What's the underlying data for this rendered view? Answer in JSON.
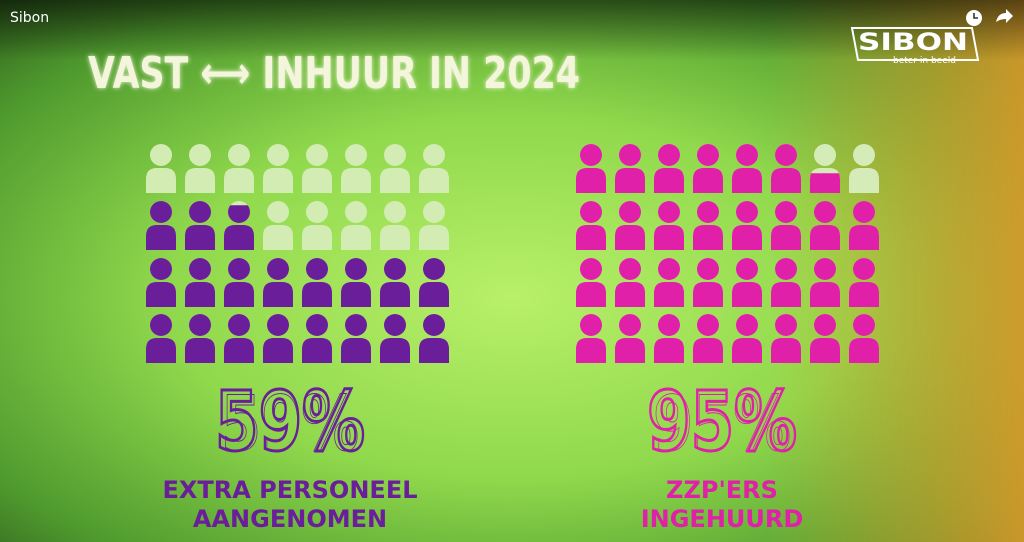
{
  "header": {
    "channel": "Sibon"
  },
  "logo": {
    "name": "SIBON",
    "tagline": "beter in beeld"
  },
  "title": "VAST ⟷ INHUUR IN 2024",
  "panels": [
    {
      "percent": "59%",
      "caption": [
        "EXTRA PERSONEEL",
        "AANGENOMEN"
      ]
    },
    {
      "percent": "95%",
      "caption": [
        "ZZP'ERS",
        "INGEHUURD"
      ]
    }
  ]
}
